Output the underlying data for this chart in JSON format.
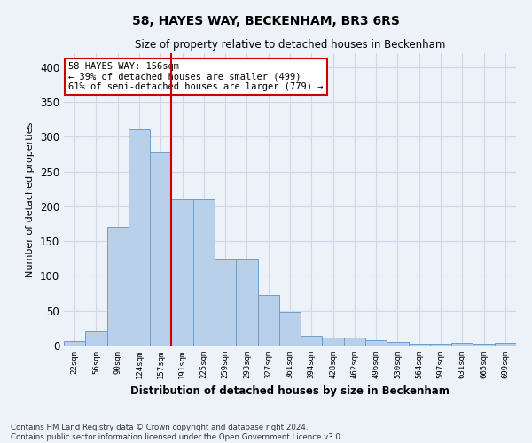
{
  "title": "58, HAYES WAY, BECKENHAM, BR3 6RS",
  "subtitle": "Size of property relative to detached houses in Beckenham",
  "xlabel": "Distribution of detached houses by size in Beckenham",
  "ylabel": "Number of detached properties",
  "bar_labels": [
    "22sqm",
    "56sqm",
    "90sqm",
    "124sqm",
    "157sqm",
    "191sqm",
    "225sqm",
    "259sqm",
    "293sqm",
    "327sqm",
    "361sqm",
    "394sqm",
    "428sqm",
    "462sqm",
    "496sqm",
    "530sqm",
    "564sqm",
    "597sqm",
    "631sqm",
    "665sqm",
    "699sqm"
  ],
  "bar_values": [
    7,
    20,
    170,
    310,
    278,
    210,
    210,
    125,
    125,
    72,
    48,
    14,
    12,
    12,
    8,
    5,
    3,
    2,
    4,
    2,
    4
  ],
  "bar_color": "#b8d0ea",
  "bar_edge_color": "#6aa0cc",
  "grid_color": "#d0d8e8",
  "background_color": "#edf2f9",
  "red_line_x": 4.5,
  "annotation_text": "58 HAYES WAY: 156sqm\n← 39% of detached houses are smaller (499)\n61% of semi-detached houses are larger (779) →",
  "annotation_box_color": "#ffffff",
  "annotation_box_edge": "#cc0000",
  "ylim": [
    0,
    420
  ],
  "yticks": [
    0,
    50,
    100,
    150,
    200,
    250,
    300,
    350,
    400
  ],
  "footer_line1": "Contains HM Land Registry data © Crown copyright and database right 2024.",
  "footer_line2": "Contains public sector information licensed under the Open Government Licence v3.0."
}
